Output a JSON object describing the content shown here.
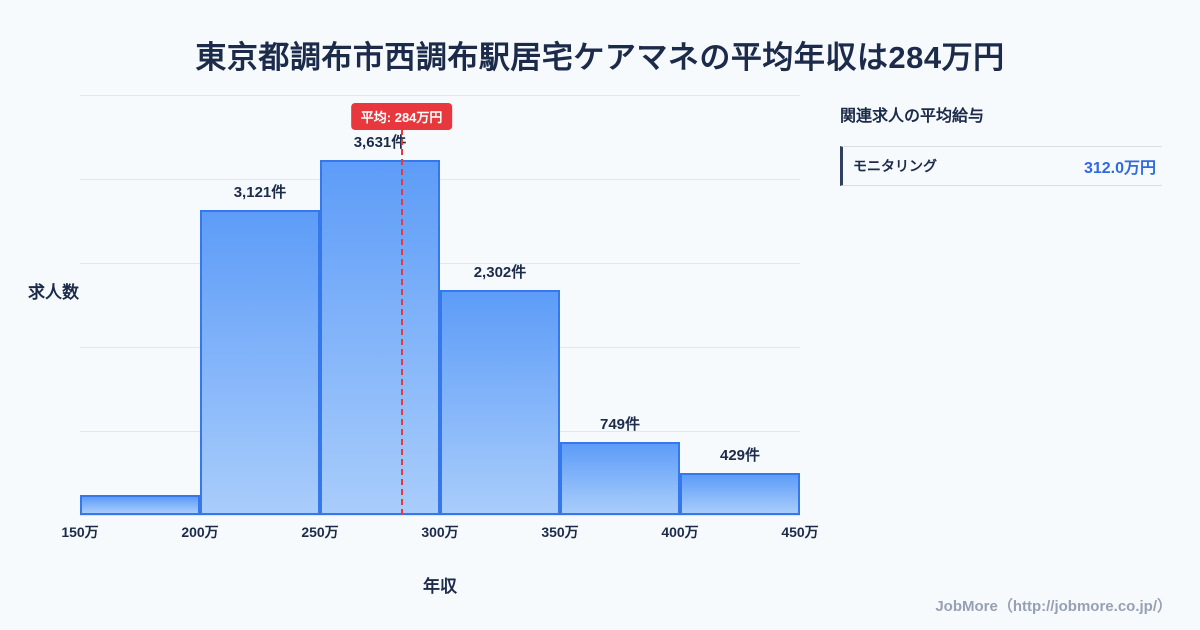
{
  "page": {
    "title": "東京都調布市西調布駅居宅ケアマネの平均年収は284万円",
    "footer": "JobMore（http://jobmore.co.jp/）"
  },
  "chart_data": {
    "type": "bar",
    "title": "東京都調布市西調布駅居宅ケアマネの平均年収は284万円",
    "xlabel": "年収",
    "ylabel": "求人数",
    "x_domain": [
      150,
      450
    ],
    "x_ticks": [
      "150万",
      "200万",
      "250万",
      "300万",
      "350万",
      "400万",
      "450万"
    ],
    "bins": [
      {
        "range": "150万-200万",
        "value": 200,
        "label": ""
      },
      {
        "range": "200万-250万",
        "value": 3121,
        "label": "3,121件"
      },
      {
        "range": "250万-300万",
        "value": 3631,
        "label": "3,631件"
      },
      {
        "range": "300万-350万",
        "value": 2302,
        "label": "2,302件"
      },
      {
        "range": "350万-400万",
        "value": 749,
        "label": "749件"
      },
      {
        "range": "400万-450万",
        "value": 429,
        "label": "429件"
      }
    ],
    "ylim": [
      0,
      4300
    ],
    "grid": "horizontal",
    "average": {
      "value": 284,
      "label": "平均: 284万円",
      "color": "#e8383d"
    },
    "colors": {
      "bar_top": "#5d9cf8",
      "bar_bottom": "#a9cdfb",
      "bar_border": "#3478ec",
      "title_text": "#1c2b4a",
      "value_blue": "#2e6ae3"
    }
  },
  "side_panel": {
    "heading": "関連求人の平均給与",
    "rows": [
      {
        "label": "モニタリング",
        "value": "312.0万円"
      }
    ]
  }
}
